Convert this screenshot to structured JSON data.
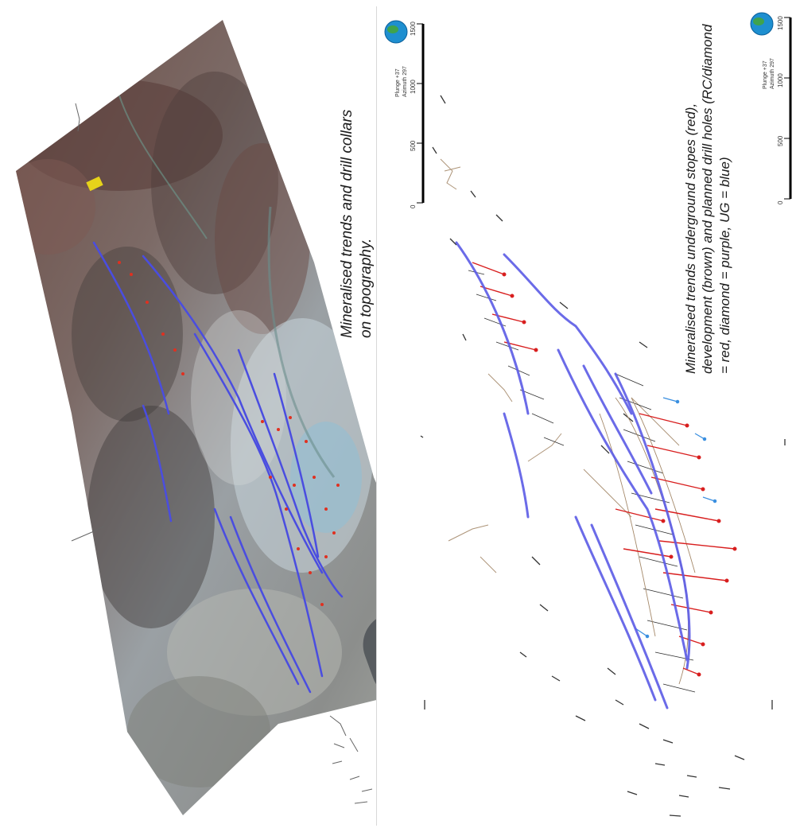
{
  "figure": {
    "left_caption": "Mineralised trends and drill collars on topography.",
    "right_caption": "Mineralised trends underground stopes (red), development (brown) and planned drill holes (RC/diamond = red, diamond = purple, UG = blue)"
  },
  "views": [
    {
      "id": "left",
      "orientation": {
        "plunge": "Plunge +37",
        "azimuth": "Azimuth 297"
      },
      "scale_labels": [
        "0",
        "500",
        "1000",
        "1500"
      ]
    },
    {
      "id": "right",
      "orientation": {
        "plunge": "Plunge +37",
        "azimuth": "Azimuth 297"
      },
      "scale_labels": [
        "0",
        "500",
        "1000",
        "1500"
      ]
    }
  ],
  "colors": {
    "trend": "#4a4de0",
    "rc_diamond": "#d81e1e",
    "ug": "#3a8fe0",
    "development": "#a5896a",
    "terrain_dark": "#5a4a44",
    "terrain_light": "#c8cfd3"
  }
}
